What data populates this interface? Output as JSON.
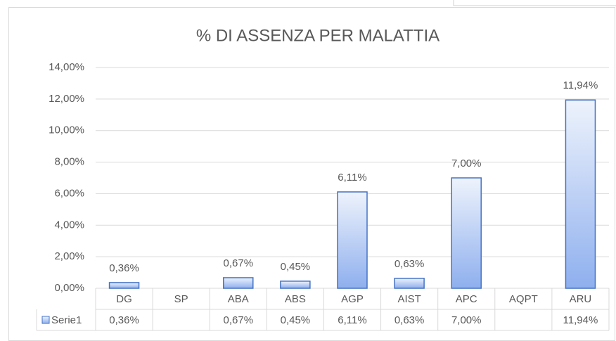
{
  "chart_data": {
    "type": "bar",
    "title": "% DI ASSENZA PER MALATTIA",
    "categories": [
      "DG",
      "SP",
      "ABA",
      "ABS",
      "AGP",
      "AIST",
      "APC",
      "AQPT",
      "ARU"
    ],
    "series": [
      {
        "name": "Serie1",
        "color": "#4472c4",
        "values": [
          0.36,
          null,
          0.67,
          0.45,
          6.11,
          0.63,
          7.0,
          null,
          11.94
        ],
        "value_labels": [
          "0,36%",
          null,
          "0,67%",
          "0,45%",
          "6,11%",
          "0,63%",
          "7,00%",
          null,
          "11,94%"
        ]
      }
    ],
    "ylim": [
      0,
      14
    ],
    "yticks": [
      {
        "value": 0,
        "label": "0,00%"
      },
      {
        "value": 2,
        "label": "2,00%"
      },
      {
        "value": 4,
        "label": "4,00%"
      },
      {
        "value": 6,
        "label": "6,00%"
      },
      {
        "value": 8,
        "label": "8,00%"
      },
      {
        "value": 10,
        "label": "10,00%"
      },
      {
        "value": 12,
        "label": "12,00%"
      },
      {
        "value": 14,
        "label": "14,00%"
      }
    ],
    "grid": true,
    "data_table": true
  }
}
